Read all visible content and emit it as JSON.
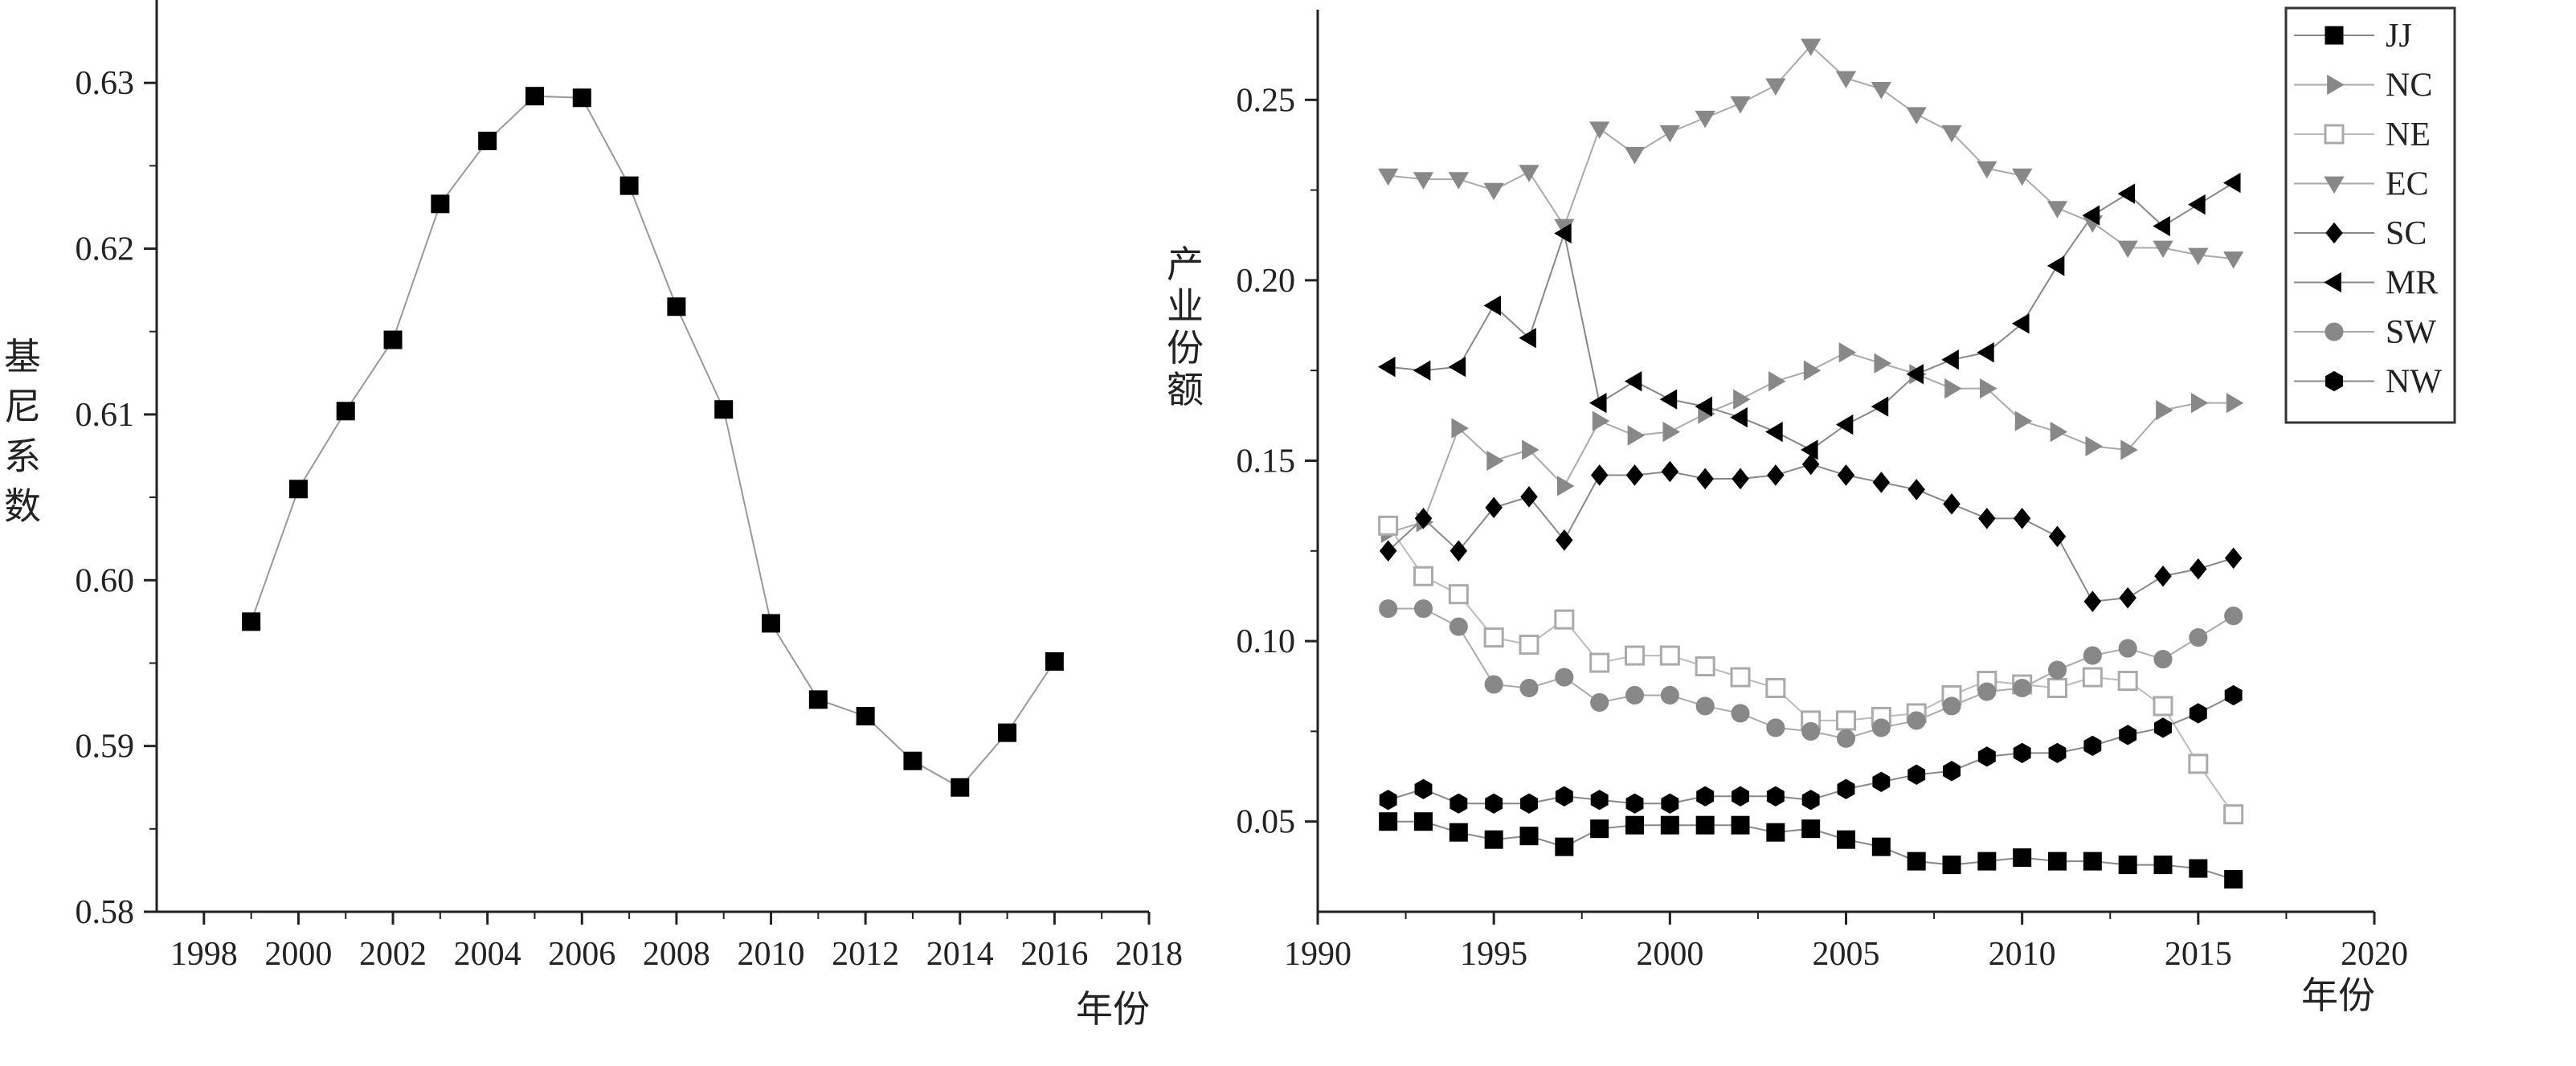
{
  "chart_data": [
    {
      "type": "line",
      "xlabel": "年份",
      "ylabel": "基尼系数",
      "xlim": [
        1997,
        2018
      ],
      "ylim": [
        0.58,
        0.635
      ],
      "x_ticks": [
        1998,
        2000,
        2002,
        2004,
        2006,
        2008,
        2010,
        2012,
        2014,
        2016,
        2018
      ],
      "y_ticks": [
        0.58,
        0.59,
        0.6,
        0.61,
        0.62,
        0.63
      ],
      "grid": false,
      "series": [
        {
          "marker": "square",
          "color": "#000000",
          "line_color": "#999999",
          "x": [
            1999,
            2000,
            2001,
            2002,
            2003,
            2004,
            2005,
            2006,
            2007,
            2008,
            2009,
            2010,
            2011,
            2012,
            2013,
            2014,
            2015,
            2016
          ],
          "values": [
            0.5975,
            0.6055,
            0.6102,
            0.6145,
            0.6227,
            0.6265,
            0.6292,
            0.6291,
            0.6238,
            0.6165,
            0.6103,
            0.5974,
            0.5928,
            0.5918,
            0.5891,
            0.5875,
            0.5908,
            0.5951
          ]
        }
      ]
    },
    {
      "type": "line",
      "xlabel": "年份",
      "ylabel": "产业份额",
      "xlim": [
        1990,
        2020
      ],
      "ylim": [
        0.025,
        0.275
      ],
      "x_ticks": [
        1990,
        1995,
        2000,
        2005,
        2010,
        2015,
        2020
      ],
      "y_ticks": [
        0.05,
        0.1,
        0.15,
        0.2,
        0.25
      ],
      "grid": false,
      "legend_position": "top-right",
      "x": [
        1992,
        1993,
        1994,
        1995,
        1996,
        1997,
        1998,
        1999,
        2000,
        2001,
        2002,
        2003,
        2004,
        2005,
        2006,
        2007,
        2008,
        2009,
        2010,
        2011,
        2012,
        2013,
        2014,
        2015,
        2016
      ],
      "series": [
        {
          "name": "JJ",
          "marker": "square",
          "color": "#000000",
          "line_color": "#888888",
          "values": [
            0.05,
            0.05,
            0.047,
            0.045,
            0.046,
            0.043,
            0.048,
            0.049,
            0.049,
            0.049,
            0.049,
            0.047,
            0.048,
            0.045,
            0.043,
            0.039,
            0.038,
            0.039,
            0.04,
            0.039,
            0.039,
            0.038,
            0.038,
            0.037,
            0.034
          ]
        },
        {
          "name": "NC",
          "marker": "triangle-right",
          "color": "#888888",
          "line_color": "#aaaaaa",
          "values": [
            0.13,
            0.133,
            0.159,
            0.15,
            0.153,
            0.143,
            0.161,
            0.157,
            0.158,
            0.163,
            0.167,
            0.172,
            0.175,
            0.18,
            0.177,
            0.174,
            0.17,
            0.17,
            0.161,
            0.158,
            0.154,
            0.153,
            0.164,
            0.166,
            0.166
          ]
        },
        {
          "name": "NE",
          "marker": "square-open",
          "color": "#aaaaaa",
          "line_color": "#bbbbbb",
          "values": [
            0.132,
            0.118,
            0.113,
            0.101,
            0.099,
            0.106,
            0.094,
            0.096,
            0.096,
            0.093,
            0.09,
            0.087,
            0.078,
            0.078,
            0.079,
            0.08,
            0.085,
            0.089,
            0.088,
            0.087,
            0.09,
            0.089,
            0.082,
            0.066,
            0.052
          ]
        },
        {
          "name": "EC",
          "marker": "triangle-down",
          "color": "#888888",
          "line_color": "#aaaaaa",
          "values": [
            0.229,
            0.228,
            0.228,
            0.225,
            0.23,
            0.215,
            0.242,
            0.235,
            0.241,
            0.245,
            0.249,
            0.254,
            0.265,
            0.256,
            0.253,
            0.246,
            0.241,
            0.231,
            0.229,
            0.22,
            0.216,
            0.209,
            0.209,
            0.207,
            0.206
          ]
        },
        {
          "name": "SC",
          "marker": "diamond",
          "color": "#000000",
          "line_color": "#888888",
          "values": [
            0.125,
            0.134,
            0.125,
            0.137,
            0.14,
            0.128,
            0.146,
            0.146,
            0.147,
            0.145,
            0.145,
            0.146,
            0.149,
            0.146,
            0.144,
            0.142,
            0.138,
            0.134,
            0.134,
            0.129,
            0.111,
            0.112,
            0.118,
            0.12,
            0.123
          ]
        },
        {
          "name": "MR",
          "marker": "triangle-left",
          "color": "#000000",
          "line_color": "#888888",
          "values": [
            0.176,
            0.175,
            0.176,
            0.193,
            0.184,
            0.213,
            0.166,
            0.172,
            0.167,
            0.165,
            0.162,
            0.158,
            0.153,
            0.16,
            0.165,
            0.174,
            0.178,
            0.18,
            0.188,
            0.204,
            0.218,
            0.224,
            0.215,
            0.221,
            0.227
          ]
        },
        {
          "name": "SW",
          "marker": "circle",
          "color": "#888888",
          "line_color": "#aaaaaa",
          "values": [
            0.109,
            0.109,
            0.104,
            0.088,
            0.087,
            0.09,
            0.083,
            0.085,
            0.085,
            0.082,
            0.08,
            0.076,
            0.075,
            0.073,
            0.076,
            0.078,
            0.082,
            0.086,
            0.087,
            0.092,
            0.096,
            0.098,
            0.095,
            0.101,
            0.107
          ]
        },
        {
          "name": "NW",
          "marker": "hexagon",
          "color": "#000000",
          "line_color": "#888888",
          "values": [
            0.056,
            0.059,
            0.055,
            0.055,
            0.055,
            0.057,
            0.056,
            0.055,
            0.055,
            0.057,
            0.057,
            0.057,
            0.056,
            0.059,
            0.061,
            0.063,
            0.064,
            0.068,
            0.069,
            0.069,
            0.071,
            0.074,
            0.076,
            0.08,
            0.085
          ]
        }
      ]
    }
  ]
}
